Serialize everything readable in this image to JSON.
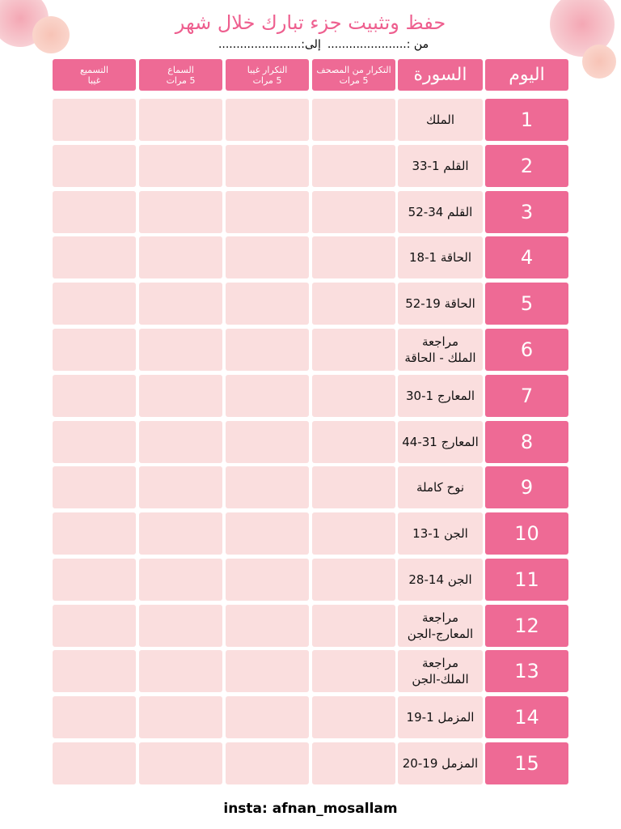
{
  "header": {
    "title": "حفظ وتثبيت جزء تبارك خلال شهر",
    "from": "من :......................",
    "to": "إلى:......................."
  },
  "table": {
    "columns": [
      [
        "اليوم"
      ],
      [
        "السورة"
      ],
      [
        "التكرار من المصحف",
        "5 مرات"
      ],
      [
        "التكرار غيبا",
        "5 مرات"
      ],
      [
        "السماع",
        "5 مرات"
      ],
      [
        "التسميع",
        "غيبا"
      ]
    ],
    "rows": [
      [
        "1",
        [
          "الملك"
        ]
      ],
      [
        "2",
        [
          "القلم 1-33"
        ]
      ],
      [
        "3",
        [
          "القلم 34-52"
        ]
      ],
      [
        "4",
        [
          "الحاقة 1-18"
        ]
      ],
      [
        "5",
        [
          "الحاقة 19-52"
        ]
      ],
      [
        "6",
        [
          "مراجعة",
          "الملك - الحاقة"
        ]
      ],
      [
        "7",
        [
          "المعارج 1-30"
        ]
      ],
      [
        "8",
        [
          "المعارج 31-44"
        ]
      ],
      [
        "9",
        [
          "نوح كاملة"
        ]
      ],
      [
        "10",
        [
          "الجن 1-13"
        ]
      ],
      [
        "11",
        [
          "الجن 14-28"
        ]
      ],
      [
        "12",
        [
          "مراجعة",
          "المعارج-الجن"
        ]
      ],
      [
        "13",
        [
          "مراجعة",
          "الملك-الجن"
        ]
      ],
      [
        "14",
        [
          "المزمل 1-19"
        ]
      ],
      [
        "15",
        [
          "المزمل 19-20"
        ]
      ]
    ]
  },
  "footer": {
    "credit": "insta: afnan_mosallam"
  }
}
